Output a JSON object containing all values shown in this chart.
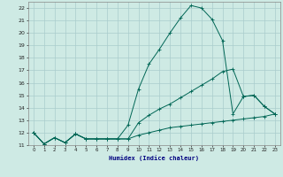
{
  "xlabel": "Humidex (Indice chaleur)",
  "xlim": [
    -0.5,
    23.5
  ],
  "ylim": [
    11,
    22.5
  ],
  "yticks": [
    11,
    12,
    13,
    14,
    15,
    16,
    17,
    18,
    19,
    20,
    21,
    22
  ],
  "xticks": [
    0,
    1,
    2,
    3,
    4,
    5,
    6,
    7,
    8,
    9,
    10,
    11,
    12,
    13,
    14,
    15,
    16,
    17,
    18,
    19,
    20,
    21,
    22,
    23
  ],
  "bg_color": "#ceeae4",
  "grid_color": "#aacccc",
  "line_color": "#006655",
  "curve1_x": [
    0,
    1,
    2,
    3,
    4,
    5,
    6,
    7,
    8,
    9,
    10,
    11,
    12,
    13,
    14,
    15,
    16,
    17,
    18,
    19,
    20,
    21,
    22,
    23
  ],
  "curve1_y": [
    12.0,
    11.1,
    11.6,
    11.2,
    11.9,
    11.5,
    11.5,
    11.5,
    11.5,
    12.6,
    15.5,
    17.5,
    18.7,
    20.0,
    21.2,
    22.2,
    22.0,
    21.1,
    19.4,
    13.5,
    14.9,
    15.0,
    14.1,
    13.5
  ],
  "curve2_x": [
    0,
    1,
    2,
    3,
    4,
    5,
    6,
    7,
    8,
    9,
    10,
    11,
    12,
    13,
    14,
    15,
    16,
    17,
    18,
    19,
    20,
    21,
    22,
    23
  ],
  "curve2_y": [
    12.0,
    11.1,
    11.6,
    11.2,
    11.9,
    11.5,
    11.5,
    11.5,
    11.5,
    11.5,
    12.8,
    13.4,
    13.9,
    14.3,
    14.8,
    15.3,
    15.8,
    16.3,
    16.9,
    17.1,
    14.9,
    15.0,
    14.1,
    13.5
  ],
  "curve3_x": [
    0,
    1,
    2,
    3,
    4,
    5,
    6,
    7,
    8,
    9,
    10,
    11,
    12,
    13,
    14,
    15,
    16,
    17,
    18,
    19,
    20,
    21,
    22,
    23
  ],
  "curve3_y": [
    12.0,
    11.1,
    11.6,
    11.2,
    11.9,
    11.5,
    11.5,
    11.5,
    11.5,
    11.5,
    11.8,
    12.0,
    12.2,
    12.4,
    12.5,
    12.6,
    12.7,
    12.8,
    12.9,
    13.0,
    13.1,
    13.2,
    13.3,
    13.5
  ]
}
